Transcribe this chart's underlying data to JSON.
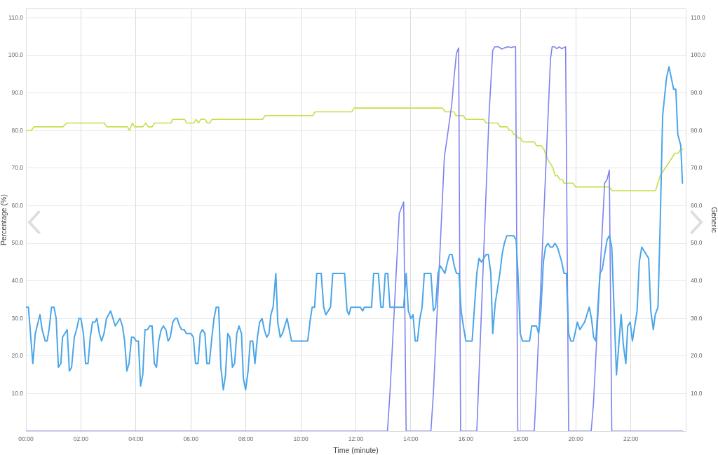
{
  "chart_data": {
    "type": "line",
    "xlabel": "Time (minute)",
    "ylabel": "Percentage (%)",
    "y2label": "Generic",
    "xlim": [
      0,
      24
    ],
    "xticks": [
      {
        "value": 0,
        "label": "00:00"
      },
      {
        "value": 2,
        "label": "02:00"
      },
      {
        "value": 4,
        "label": "04:00"
      },
      {
        "value": 6,
        "label": "06:00"
      },
      {
        "value": 8,
        "label": "08:00"
      },
      {
        "value": 10,
        "label": "10:00"
      },
      {
        "value": 12,
        "label": "12:00"
      },
      {
        "value": 14,
        "label": "14:00"
      },
      {
        "value": 16,
        "label": "16:00"
      },
      {
        "value": 18,
        "label": "18:00"
      },
      {
        "value": 20,
        "label": "20:00"
      },
      {
        "value": 22,
        "label": "22:00"
      }
    ],
    "ylim": [
      0,
      112.5
    ],
    "yticks": [
      {
        "value": 10,
        "label": "10.0"
      },
      {
        "value": 20,
        "label": "20.0"
      },
      {
        "value": 30,
        "label": "30.0"
      },
      {
        "value": 40,
        "label": "40.0"
      },
      {
        "value": 50,
        "label": "50.0"
      },
      {
        "value": 60,
        "label": "60.0"
      },
      {
        "value": 70,
        "label": "70.0"
      },
      {
        "value": 80,
        "label": "80.0"
      },
      {
        "value": 90,
        "label": "90.0"
      },
      {
        "value": 100,
        "label": "100.0"
      },
      {
        "value": 110,
        "label": "110.0"
      }
    ],
    "y2lim": [
      0,
      112.5
    ],
    "y2ticks": [
      {
        "value": 10,
        "label": "10.0"
      },
      {
        "value": 20,
        "label": "20.0"
      },
      {
        "value": 30,
        "label": "30.0"
      },
      {
        "value": 40,
        "label": "40.0"
      },
      {
        "value": 50,
        "label": "50.0"
      },
      {
        "value": 60,
        "label": "60.0"
      },
      {
        "value": 70,
        "label": "70.0"
      },
      {
        "value": 80,
        "label": "80.0"
      },
      {
        "value": 90,
        "label": "90.0"
      },
      {
        "value": 100,
        "label": "100.0"
      },
      {
        "value": 110,
        "label": "110.0"
      }
    ],
    "grid": true,
    "marker": "none",
    "line_style": "solid",
    "series": [
      {
        "color": "#4ba6e8",
        "x": [
          0,
          0.09,
          0.25,
          0.34,
          0.51,
          0.59,
          0.7,
          0.77,
          0.84,
          0.93,
          1.02,
          1.1,
          1.18,
          1.27,
          1.33,
          1.5,
          1.58,
          1.66,
          1.76,
          1.84,
          1.93,
          2,
          2.09,
          2.17,
          2.26,
          2.34,
          2.42,
          2.51,
          2.58,
          2.67,
          2.75,
          2.84,
          2.93,
          3.08,
          3.25,
          3.42,
          3.51,
          3.59,
          3.67,
          3.75,
          3.84,
          3.92,
          4.01,
          4.09,
          4.17,
          4.25,
          4.33,
          4.42,
          4.5,
          4.59,
          4.67,
          4.75,
          4.83,
          4.92,
          5,
          5.09,
          5.17,
          5.25,
          5.34,
          5.43,
          5.5,
          5.59,
          5.67,
          5.76,
          5.83,
          6,
          6.09,
          6.17,
          6.26,
          6.34,
          6.42,
          6.51,
          6.58,
          6.67,
          6.75,
          6.84,
          6.92,
          7.01,
          7.09,
          7.18,
          7.26,
          7.34,
          7.42,
          7.51,
          7.59,
          7.67,
          7.75,
          7.84,
          7.91,
          7.99,
          8.08,
          8.16,
          8.25,
          8.33,
          8.42,
          8.5,
          8.59,
          8.67,
          8.76,
          8.84,
          8.91,
          8.99,
          9.09,
          9.16,
          9.25,
          9.33,
          9.5,
          9.66,
          10.25,
          10.33,
          10.41,
          10.5,
          10.58,
          10.74,
          10.83,
          10.91,
          11.08,
          11.16,
          11.59,
          11.68,
          11.75,
          11.82,
          12.16,
          12.25,
          12.31,
          12.57,
          12.65,
          12.82,
          12.91,
          12.99,
          13.07,
          13.16,
          13.24,
          13.74,
          13.83,
          13.91,
          14,
          14.08,
          14.16,
          14.24,
          14.33,
          14.41,
          14.49,
          14.73,
          14.82,
          14.9,
          14.99,
          15.07,
          15.24,
          15.33,
          15.41,
          15.5,
          15.58,
          15.66,
          15.75,
          15.83,
          15.91,
          16,
          16.23,
          16.4,
          16.48,
          16.57,
          16.65,
          16.74,
          16.82,
          16.91,
          16.98,
          17.07,
          17.24,
          17.32,
          17.4,
          17.49,
          17.74,
          17.83,
          17.89,
          17.98,
          18.06,
          18.32,
          18.4,
          18.57,
          18.65,
          18.73,
          18.82,
          18.9,
          18.99,
          19.07,
          19.16,
          19.24,
          19.33,
          19.49,
          19.57,
          19.66,
          19.74,
          19.82,
          19.91,
          20.06,
          20.15,
          20.32,
          20.49,
          20.57,
          20.65,
          20.73,
          20.88,
          20.96,
          21.14,
          21.22,
          21.31,
          21.48,
          21.65,
          21.73,
          21.82,
          21.89,
          21.98,
          22.06,
          22.23,
          22.31,
          22.4,
          22.65,
          22.73,
          22.82,
          22.89,
          22.99,
          23.07,
          23.16,
          23.3,
          23.39,
          23.56,
          23.64,
          23.71,
          23.82,
          23.88
        ],
        "values": [
          33,
          33,
          18,
          26,
          31,
          27,
          24,
          24,
          27,
          33,
          33,
          30,
          17,
          18,
          25,
          27,
          16,
          17,
          25,
          27,
          30,
          30,
          26,
          18,
          18,
          25,
          29,
          29,
          30,
          26,
          24,
          26,
          30,
          32,
          28,
          30,
          28,
          24,
          16,
          18,
          25,
          25,
          24,
          24,
          12,
          15,
          27,
          27,
          28,
          28,
          18,
          17,
          24,
          27,
          28,
          27,
          24,
          25,
          29,
          30,
          30,
          28,
          27,
          27,
          26,
          26,
          25,
          18,
          18,
          26,
          27,
          26,
          18,
          18,
          24,
          30,
          33,
          33,
          17,
          11,
          15,
          26,
          25,
          17,
          18,
          26,
          28,
          26,
          14,
          11,
          16,
          24,
          24,
          18,
          25,
          29,
          30,
          27,
          25,
          26,
          31,
          33,
          42,
          29,
          25,
          26,
          30,
          24,
          24,
          29,
          33,
          33,
          42,
          42,
          33,
          31,
          33,
          42,
          42,
          32,
          31,
          33,
          33,
          32,
          33,
          33,
          42,
          42,
          33,
          33,
          42,
          42,
          33,
          33,
          42,
          32,
          30,
          31,
          24,
          24,
          30,
          33,
          42,
          42,
          32,
          33,
          42,
          44,
          42,
          45,
          47,
          47,
          44,
          42,
          42,
          32,
          28,
          24,
          24,
          42,
          46,
          45,
          46,
          47,
          47,
          42,
          26,
          34,
          42,
          47,
          50,
          52,
          52,
          51,
          43,
          26,
          24,
          24,
          28,
          28,
          26,
          32,
          45,
          49,
          50,
          49,
          49,
          50,
          49,
          45,
          42,
          42,
          26,
          24,
          24,
          29,
          27,
          29,
          33,
          30,
          25,
          24,
          42,
          43,
          51,
          52,
          49,
          15,
          31,
          23,
          18,
          28,
          29,
          24,
          32,
          45,
          49,
          46,
          32,
          27,
          31,
          33,
          55,
          84,
          94,
          97,
          91,
          91,
          79,
          76,
          66
        ]
      },
      {
        "color": "#7f83ee",
        "x": [
          0,
          13.15,
          13.24,
          13.58,
          13.74,
          13.83,
          14.73,
          14.82,
          15.22,
          15.32,
          15.49,
          15.57,
          15.66,
          15.74,
          15.81,
          16.4,
          16.85,
          16.98,
          17.06,
          17.18,
          17.32,
          17.4,
          17.53,
          17.66,
          17.74,
          17.81,
          17.89,
          18.49,
          18.57,
          19.08,
          19.14,
          19.23,
          19.31,
          19.4,
          19.48,
          19.63,
          19.74,
          20.56,
          20.64,
          21.05,
          21.14,
          21.22,
          21.31,
          23.88
        ],
        "values": [
          0,
          0,
          10,
          58,
          61,
          0,
          0,
          10,
          73,
          78,
          87,
          94,
          100.6,
          102,
          0,
          0,
          85,
          101.4,
          102.3,
          102.3,
          101.7,
          102,
          102.3,
          102.1,
          102.3,
          102.3,
          0,
          0,
          12,
          99,
          102.3,
          102.3,
          101.8,
          102.3,
          101.8,
          102.3,
          0,
          0,
          7,
          66,
          67,
          69.5,
          0,
          0
        ]
      },
      {
        "color": "#c4e04b",
        "x": [
          0,
          0.19,
          0.29,
          1.35,
          1.48,
          2.85,
          2.94,
          3.69,
          3.77,
          3.87,
          3.96,
          4.25,
          4.36,
          4.45,
          4.59,
          4.68,
          5.27,
          5.34,
          5.77,
          5.85,
          6.11,
          6.19,
          6.28,
          6.36,
          6.51,
          6.6,
          6.68,
          6.77,
          8.61,
          8.7,
          10.44,
          10.52,
          11.85,
          11.94,
          15.15,
          15.25,
          15.57,
          15.64,
          15.91,
          15.99,
          16.65,
          16.74,
          17.16,
          17.25,
          17.5,
          17.59,
          17.67,
          17.74,
          17.82,
          17.91,
          17.99,
          18.08,
          18.49,
          18.57,
          18.74,
          18.84,
          19,
          19.1,
          19.17,
          19.25,
          19.34,
          19.42,
          19.51,
          19.57,
          19.9,
          19.99,
          21.22,
          21.32,
          22.9,
          23.07,
          23.16,
          23.52,
          23.6,
          23.73,
          23.81,
          23.9
        ],
        "values": [
          80,
          80,
          81,
          81,
          82,
          82,
          81,
          81,
          80,
          82,
          81,
          81,
          82,
          81,
          81,
          82,
          82,
          83,
          83,
          82,
          82,
          83,
          82,
          83,
          83,
          82,
          82,
          83,
          83,
          84,
          84,
          85,
          85,
          86,
          86,
          85,
          85,
          84,
          84,
          83,
          83,
          82,
          82,
          81,
          81,
          80,
          80,
          79,
          79,
          78,
          78,
          77,
          77,
          76,
          76,
          75,
          72,
          71,
          70,
          68,
          68,
          67,
          67,
          66,
          66,
          65,
          65,
          64,
          64,
          68,
          69,
          73,
          74,
          74,
          75,
          75
        ]
      }
    ]
  }
}
